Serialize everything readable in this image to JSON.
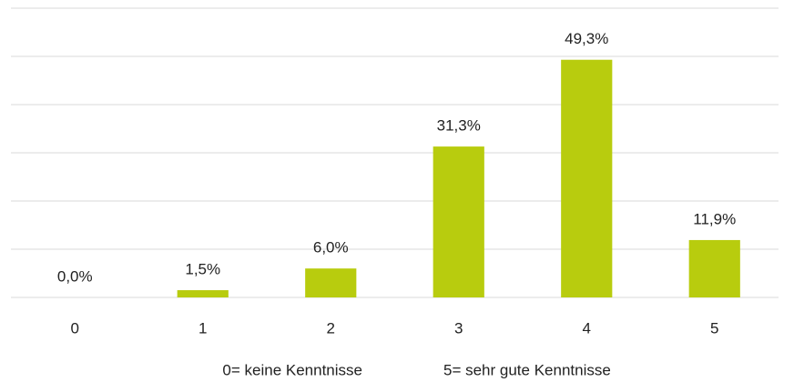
{
  "chart_data": {
    "type": "bar",
    "categories": [
      "0",
      "1",
      "2",
      "3",
      "4",
      "5"
    ],
    "values": [
      0,
      1.5,
      6,
      31.3,
      49.3,
      11.9
    ],
    "value_labels": [
      "0,0%",
      "1,5%",
      "6,0%",
      "31,3%",
      "49,3%",
      "11,9%"
    ],
    "color": "#b8cc0e",
    "ylim": [
      0,
      60
    ],
    "yticks": [
      0,
      10,
      20,
      30,
      40,
      50,
      60
    ],
    "grid": true,
    "annotations": [
      "0= keine Kenntnisse",
      "5= sehr gute Kenntnisse"
    ]
  }
}
